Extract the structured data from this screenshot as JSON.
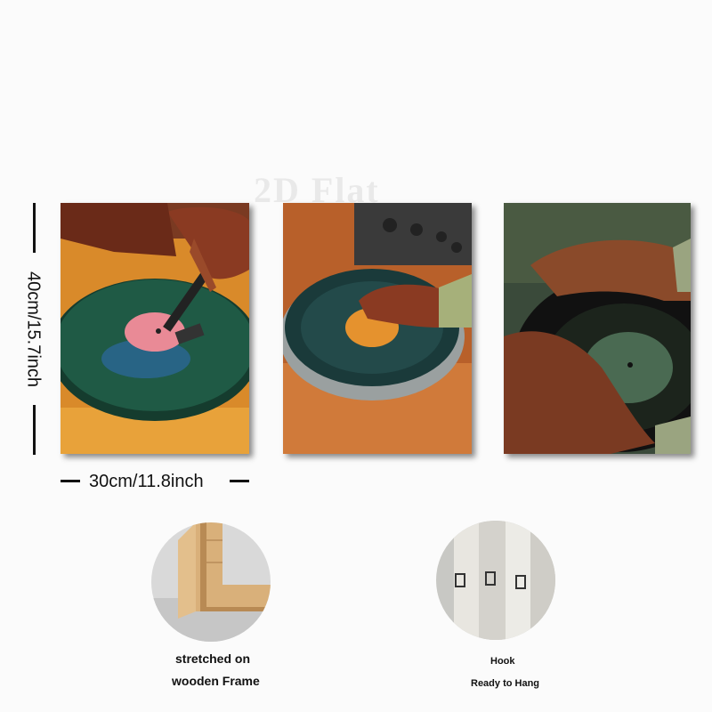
{
  "watermark": "2D Flat",
  "dimensions": {
    "height": "40cm/15.7inch",
    "width": "30cm/11.8inch"
  },
  "details": [
    {
      "name": "wooden-frame",
      "lines": [
        "stretched on",
        "wooden Frame"
      ]
    },
    {
      "name": "hook",
      "lines": [
        "Hook",
        "Ready to Hang"
      ]
    }
  ],
  "colors": {
    "vinyl_green": "#1f5a45",
    "turntable_orange": "#d98a2a",
    "label_pink": "#e98a96",
    "label_orange": "#e5922e",
    "skin": "#8a3a22",
    "background": "#fbfbfb"
  }
}
